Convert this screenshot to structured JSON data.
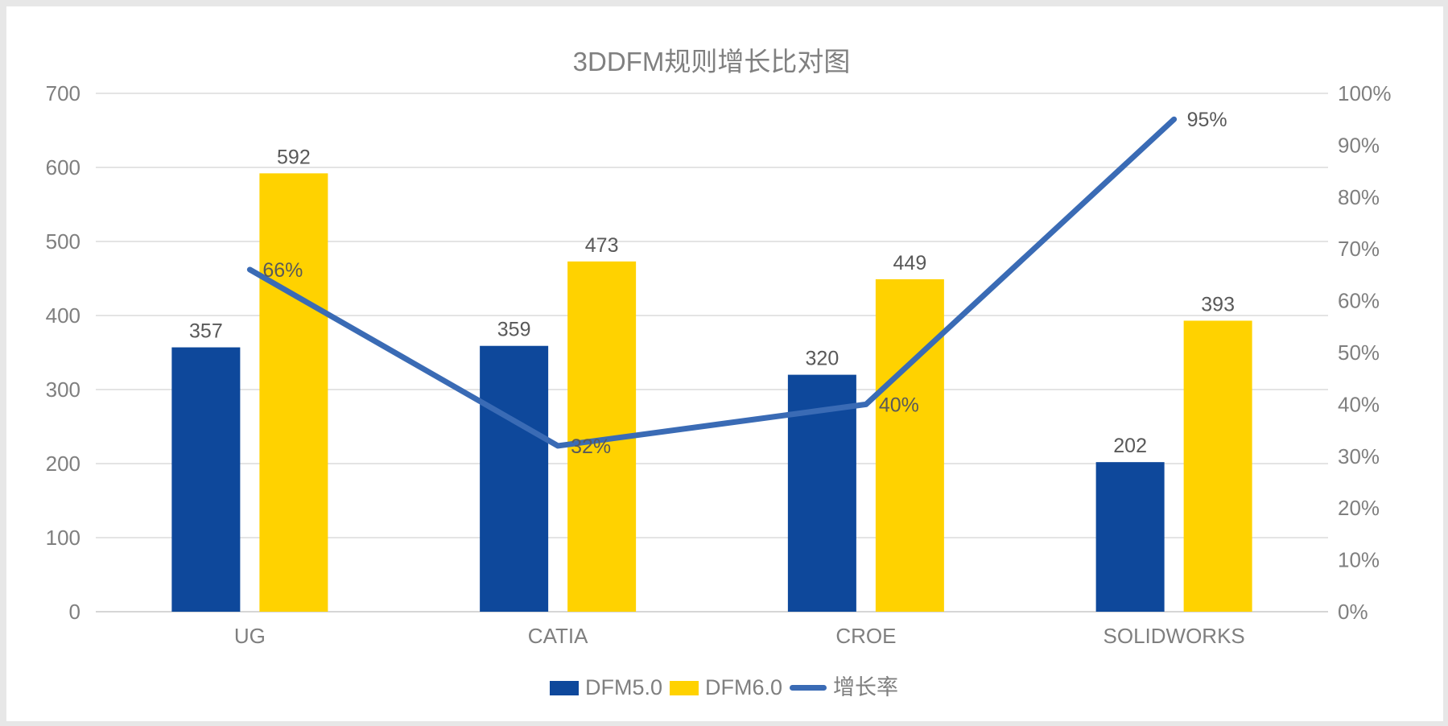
{
  "chart_data": {
    "type": "combo",
    "title": "3DDFM规则增长比对图",
    "categories": [
      "UG",
      "CATIA",
      "CROE",
      "SOLIDWORKS"
    ],
    "series": [
      {
        "name": "DFM5.0",
        "type": "bar",
        "axis": "left",
        "color": "#0e489b",
        "values": [
          357,
          359,
          320,
          202
        ]
      },
      {
        "name": "DFM6.0",
        "type": "bar",
        "axis": "left",
        "color": "#ffd200",
        "values": [
          592,
          473,
          449,
          393
        ]
      },
      {
        "name": "增长率",
        "type": "line",
        "axis": "right",
        "color": "#3a6bb5",
        "values": [
          66,
          32,
          40,
          95
        ],
        "unit": "%"
      }
    ],
    "data_labels": {
      "DFM5.0": [
        "357",
        "359",
        "320",
        "202"
      ],
      "DFM6.0": [
        "592",
        "473",
        "449",
        "393"
      ],
      "增长率": [
        "66%",
        "32%",
        "40%",
        "95%"
      ]
    },
    "left_axis": {
      "min": 0,
      "max": 700,
      "step": 100,
      "ticks": [
        "0",
        "100",
        "200",
        "300",
        "400",
        "500",
        "600",
        "700"
      ]
    },
    "right_axis": {
      "min": 0,
      "max": 100,
      "step": 10,
      "ticks": [
        "0%",
        "10%",
        "20%",
        "30%",
        "40%",
        "50%",
        "60%",
        "70%",
        "80%",
        "90%",
        "100%"
      ]
    },
    "grid": true,
    "legend_position": "bottom",
    "style": {
      "grid_color": "#dbdbdb",
      "axis_line_color": "#d6d6d6",
      "tick_color": "#7f7f7f",
      "category_color": "#7f7f7f",
      "data_label_color": "#595959",
      "title_color": "#808080",
      "plot_background": "#ffffff",
      "frame_color": "#e7e7e7"
    }
  }
}
